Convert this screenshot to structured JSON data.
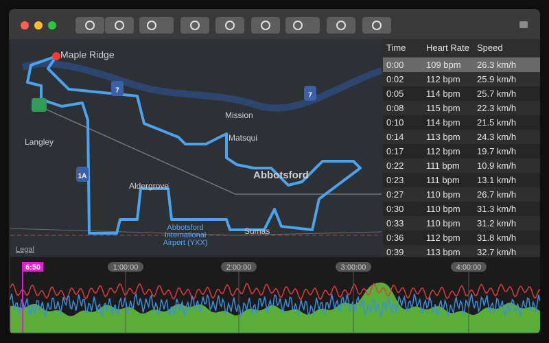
{
  "map": {
    "labels": {
      "place_1": "Maple Ridge",
      "place_2": "Mission",
      "place_3": "Matsqui",
      "place_4": "Langley",
      "place_5": "Abbotsford",
      "place_6": "Aldergrove",
      "place_7": "Sumas",
      "airport": [
        "Abbotsford",
        "International",
        "Airport (YXX)"
      ]
    },
    "shields": [
      "7",
      "7",
      "1A"
    ],
    "legal": "Legal"
  },
  "table": {
    "columns": [
      "Time",
      "Heart Rate",
      "Speed"
    ],
    "rows": [
      [
        "0:00",
        "109 bpm",
        "26.3 km/h"
      ],
      [
        "0:02",
        "112 bpm",
        "25.9 km/h"
      ],
      [
        "0:05",
        "114 bpm",
        "25.7 km/h"
      ],
      [
        "0:08",
        "115 bpm",
        "22.3 km/h"
      ],
      [
        "0:10",
        "114 bpm",
        "21.5 km/h"
      ],
      [
        "0:14",
        "113 bpm",
        "24.3 km/h"
      ],
      [
        "0:17",
        "112 bpm",
        "19.7 km/h"
      ],
      [
        "0:22",
        "111 bpm",
        "10.9 km/h"
      ],
      [
        "0:23",
        "111 bpm",
        "13.1 km/h"
      ],
      [
        "0:27",
        "110 bpm",
        "26.7 km/h"
      ],
      [
        "0:30",
        "110 bpm",
        "31.3 km/h"
      ],
      [
        "0:33",
        "110 bpm",
        "31.2 km/h"
      ],
      [
        "0:36",
        "112 bpm",
        "31.8 km/h"
      ],
      [
        "0:39",
        "113 bpm",
        "32.7 km/h"
      ]
    ]
  },
  "timeline": {
    "cursor": "6:50",
    "marks": [
      "1:00:00",
      "2:00:00",
      "3:00:00",
      "4:00:00"
    ]
  }
}
